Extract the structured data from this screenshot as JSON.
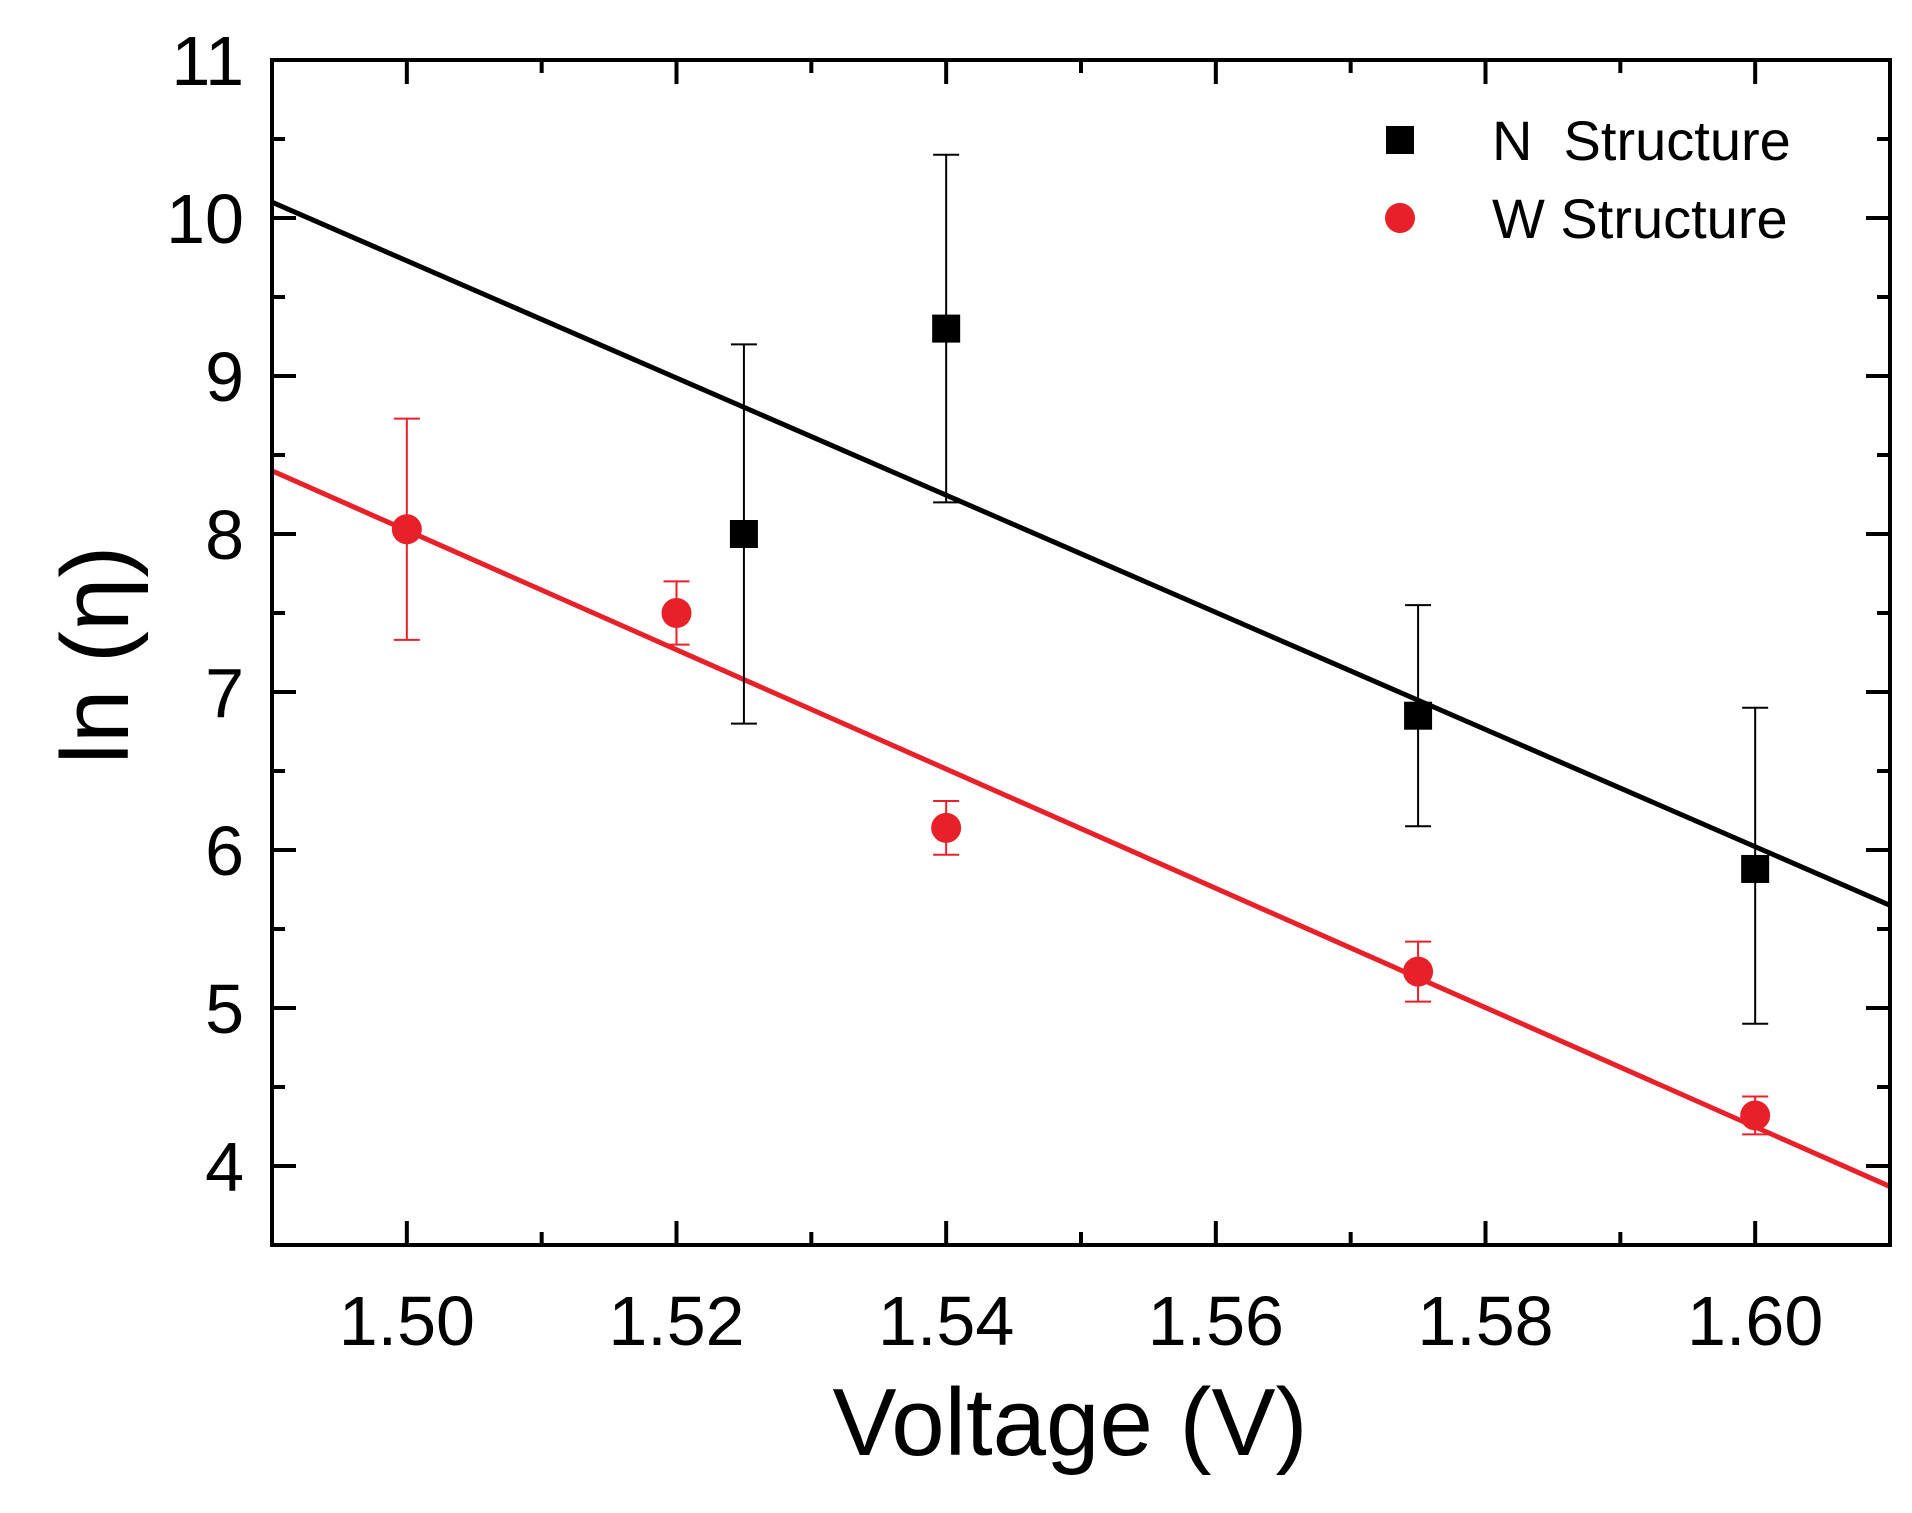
{
  "chart_data": {
    "type": "scatter",
    "title": "",
    "xlabel": "Voltage (V)",
    "ylabel": "ln (η)",
    "xlim": [
      1.49,
      1.61
    ],
    "ylim": [
      3.5,
      11
    ],
    "x_major_ticks": [
      1.5,
      1.52,
      1.54,
      1.56,
      1.58,
      1.6
    ],
    "x_tick_labels": [
      "1.50",
      "1.52",
      "1.54",
      "1.56",
      "1.58",
      "1.60"
    ],
    "x_minor_ticks": [
      1.49,
      1.51,
      1.53,
      1.55,
      1.57,
      1.59,
      1.61
    ],
    "y_major_ticks": [
      4,
      5,
      6,
      7,
      8,
      9,
      10,
      11
    ],
    "y_tick_labels": [
      "4",
      "5",
      "6",
      "7",
      "8",
      "9",
      "10",
      "11"
    ],
    "y_minor_ticks": [
      4.5,
      5.5,
      6.5,
      7.5,
      8.5,
      9.5,
      10.5
    ],
    "legend_position": "top-right",
    "series": [
      {
        "name": "N  Structure",
        "marker": "square",
        "color": "#000000",
        "x": [
          1.525,
          1.54,
          1.575,
          1.6
        ],
        "y": [
          8.0,
          9.3,
          6.85,
          5.88
        ],
        "err_low": [
          6.8,
          8.2,
          6.15,
          4.9
        ],
        "err_high": [
          9.2,
          10.4,
          7.55,
          6.9
        ],
        "fit": {
          "x": [
            1.49,
            1.61
          ],
          "y": [
            10.1,
            5.65
          ]
        }
      },
      {
        "name": "W Structure",
        "marker": "circle",
        "color": "#e8202a",
        "x": [
          1.5,
          1.52,
          1.54,
          1.575,
          1.6
        ],
        "y": [
          8.03,
          7.5,
          6.14,
          5.23,
          4.32
        ],
        "err_low": [
          7.33,
          7.3,
          5.97,
          5.04,
          4.2
        ],
        "err_high": [
          8.73,
          7.7,
          6.31,
          5.42,
          4.44
        ],
        "fit": {
          "x": [
            1.49,
            1.61
          ],
          "y": [
            8.4,
            3.87
          ]
        }
      }
    ]
  }
}
